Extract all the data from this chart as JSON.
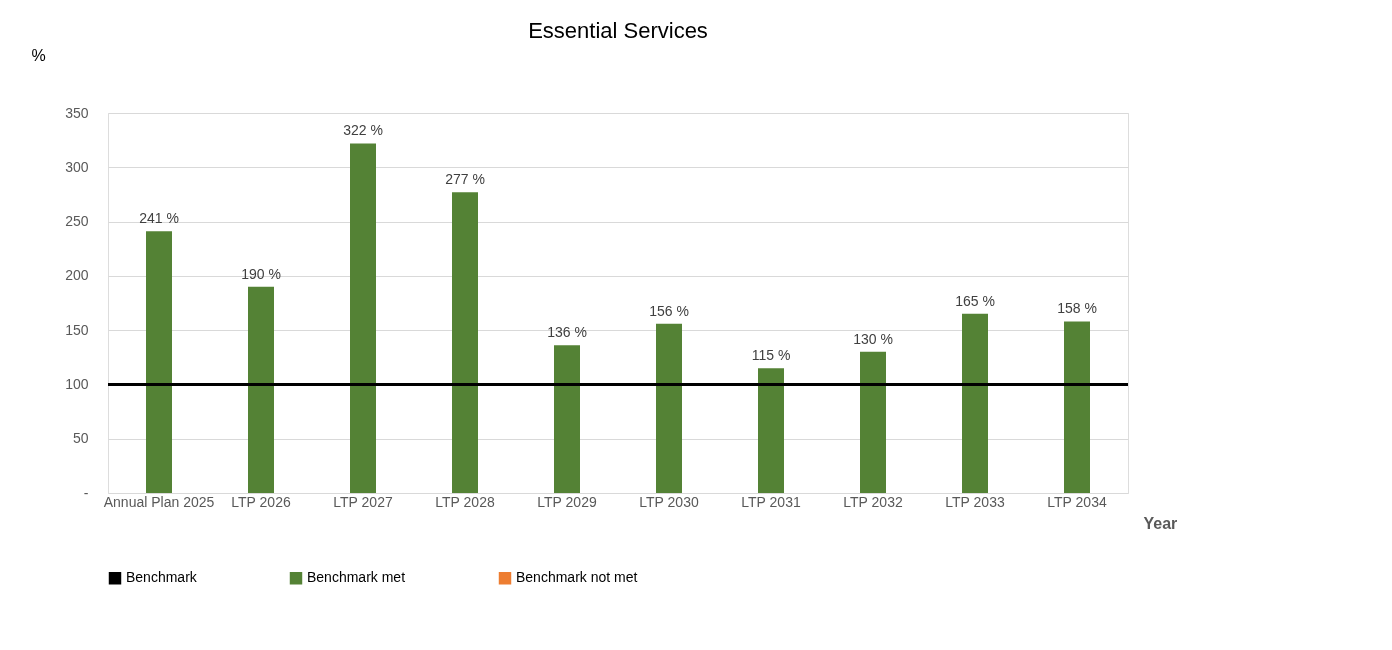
{
  "chart_data": {
    "type": "bar",
    "title": "Essential Services",
    "ylabel": "%",
    "xlabel": "Year",
    "categories": [
      "Annual Plan 2025",
      "LTP 2026",
      "LTP 2027",
      "LTP 2028",
      "LTP 2029",
      "LTP 2030",
      "LTP 2031",
      "LTP 2032",
      "LTP 2033",
      "LTP 2034"
    ],
    "series": [
      {
        "name": "Benchmark met",
        "color": "#548235",
        "values": [
          241,
          190,
          322,
          277,
          136,
          156,
          115,
          130,
          165,
          158
        ],
        "value_labels": [
          "241 %",
          "190 %",
          "322 %",
          "277 %",
          "136 %",
          "156 %",
          "115 %",
          "130 %",
          "165 %",
          "158 %"
        ]
      },
      {
        "name": "Benchmark not met",
        "color": "#ed7d31",
        "values": [
          null,
          null,
          null,
          null,
          null,
          null,
          null,
          null,
          null,
          null
        ]
      }
    ],
    "ylim": [
      0,
      350
    ],
    "yticks": [
      {
        "value": 0,
        "label": "-"
      },
      50,
      100,
      150,
      200,
      250,
      300,
      350
    ],
    "ref_lines": [
      {
        "axis": "y",
        "value": 100,
        "label": "Benchmark",
        "color": "#000000"
      }
    ],
    "grid": "y",
    "legend": "bottom"
  }
}
